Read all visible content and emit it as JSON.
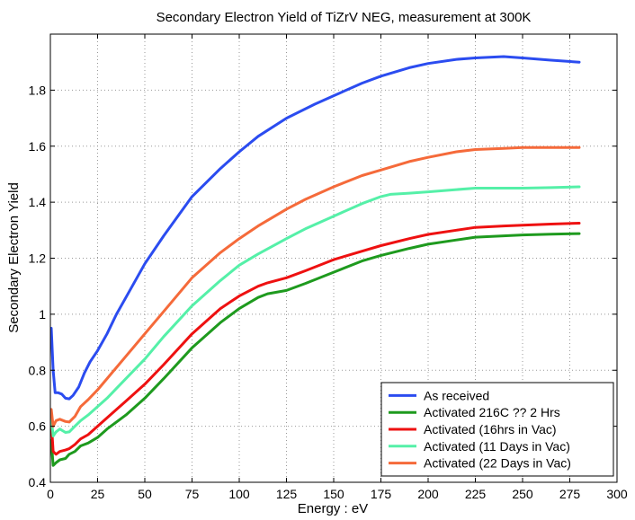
{
  "chart_data": {
    "type": "line",
    "title": "Secondary Electron Yield of TiZrV NEG, measurement at 300K",
    "xlabel": "Energy : eV",
    "ylabel": "Secondary Electron Yield",
    "xlim": [
      0,
      300
    ],
    "ylim": [
      0.4,
      2.0
    ],
    "xticks": [
      0,
      25,
      50,
      75,
      100,
      125,
      150,
      175,
      200,
      225,
      250,
      275,
      300
    ],
    "yticks": [
      0.4,
      0.6,
      0.8,
      1.0,
      1.2,
      1.4,
      1.6,
      1.8
    ],
    "ytick_labels": [
      "0.4",
      "0.6",
      "0.8",
      "1",
      "1.2",
      "1.4",
      "1.6",
      "1.8"
    ],
    "grid": true,
    "legend_position": "bottom-right",
    "series": [
      {
        "name": "As received",
        "color": "#2b4cf0",
        "points": [
          [
            0.5,
            0.95
          ],
          [
            1.5,
            0.8
          ],
          [
            2.5,
            0.72
          ],
          [
            4,
            0.72
          ],
          [
            6,
            0.715
          ],
          [
            8,
            0.7
          ],
          [
            10,
            0.698
          ],
          [
            12,
            0.71
          ],
          [
            15,
            0.74
          ],
          [
            18,
            0.79
          ],
          [
            21,
            0.83
          ],
          [
            25,
            0.87
          ],
          [
            30,
            0.93
          ],
          [
            35,
            1.0
          ],
          [
            40,
            1.06
          ],
          [
            50,
            1.18
          ],
          [
            60,
            1.28
          ],
          [
            75,
            1.42
          ],
          [
            90,
            1.52
          ],
          [
            100,
            1.58
          ],
          [
            110,
            1.635
          ],
          [
            125,
            1.7
          ],
          [
            140,
            1.75
          ],
          [
            150,
            1.78
          ],
          [
            165,
            1.825
          ],
          [
            175,
            1.85
          ],
          [
            190,
            1.88
          ],
          [
            200,
            1.895
          ],
          [
            215,
            1.91
          ],
          [
            225,
            1.915
          ],
          [
            240,
            1.92
          ],
          [
            250,
            1.915
          ],
          [
            265,
            1.907
          ],
          [
            280,
            1.9
          ]
        ]
      },
      {
        "name": "Activated 216C ?? 2 Hrs",
        "color": "#1e9a1e",
        "points": [
          [
            0.5,
            0.55
          ],
          [
            1.5,
            0.46
          ],
          [
            3,
            0.47
          ],
          [
            5,
            0.48
          ],
          [
            8,
            0.485
          ],
          [
            10,
            0.5
          ],
          [
            13,
            0.51
          ],
          [
            16,
            0.53
          ],
          [
            20,
            0.54
          ],
          [
            25,
            0.56
          ],
          [
            30,
            0.59
          ],
          [
            40,
            0.64
          ],
          [
            50,
            0.7
          ],
          [
            60,
            0.77
          ],
          [
            75,
            0.88
          ],
          [
            90,
            0.97
          ],
          [
            100,
            1.02
          ],
          [
            110,
            1.06
          ],
          [
            115,
            1.073
          ],
          [
            125,
            1.085
          ],
          [
            135,
            1.11
          ],
          [
            150,
            1.15
          ],
          [
            165,
            1.19
          ],
          [
            175,
            1.21
          ],
          [
            190,
            1.235
          ],
          [
            200,
            1.25
          ],
          [
            215,
            1.265
          ],
          [
            225,
            1.275
          ],
          [
            240,
            1.28
          ],
          [
            250,
            1.283
          ],
          [
            265,
            1.286
          ],
          [
            280,
            1.288
          ]
        ]
      },
      {
        "name": "Activated (16hrs in Vac)",
        "color": "#ee1111",
        "points": [
          [
            0.5,
            0.62
          ],
          [
            1.5,
            0.51
          ],
          [
            3,
            0.5
          ],
          [
            5,
            0.51
          ],
          [
            8,
            0.515
          ],
          [
            10,
            0.52
          ],
          [
            13,
            0.535
          ],
          [
            16,
            0.555
          ],
          [
            20,
            0.57
          ],
          [
            25,
            0.6
          ],
          [
            30,
            0.63
          ],
          [
            40,
            0.69
          ],
          [
            50,
            0.75
          ],
          [
            60,
            0.82
          ],
          [
            75,
            0.93
          ],
          [
            90,
            1.02
          ],
          [
            100,
            1.065
          ],
          [
            110,
            1.1
          ],
          [
            115,
            1.112
          ],
          [
            125,
            1.13
          ],
          [
            135,
            1.155
          ],
          [
            150,
            1.195
          ],
          [
            165,
            1.225
          ],
          [
            175,
            1.245
          ],
          [
            190,
            1.27
          ],
          [
            200,
            1.285
          ],
          [
            215,
            1.3
          ],
          [
            225,
            1.31
          ],
          [
            240,
            1.315
          ],
          [
            250,
            1.318
          ],
          [
            265,
            1.322
          ],
          [
            280,
            1.325
          ]
        ]
      },
      {
        "name": "Activated (11 Days in Vac)",
        "color": "#55f0a8",
        "points": [
          [
            0.5,
            0.63
          ],
          [
            1.5,
            0.565
          ],
          [
            3,
            0.58
          ],
          [
            5,
            0.59
          ],
          [
            8,
            0.578
          ],
          [
            10,
            0.58
          ],
          [
            13,
            0.6
          ],
          [
            16,
            0.62
          ],
          [
            20,
            0.64
          ],
          [
            25,
            0.67
          ],
          [
            30,
            0.7
          ],
          [
            40,
            0.77
          ],
          [
            50,
            0.84
          ],
          [
            60,
            0.92
          ],
          [
            75,
            1.03
          ],
          [
            90,
            1.12
          ],
          [
            100,
            1.175
          ],
          [
            110,
            1.215
          ],
          [
            125,
            1.27
          ],
          [
            135,
            1.305
          ],
          [
            150,
            1.35
          ],
          [
            165,
            1.395
          ],
          [
            175,
            1.42
          ],
          [
            180,
            1.428
          ],
          [
            190,
            1.432
          ],
          [
            200,
            1.437
          ],
          [
            215,
            1.445
          ],
          [
            225,
            1.45
          ],
          [
            240,
            1.45
          ],
          [
            250,
            1.45
          ],
          [
            265,
            1.452
          ],
          [
            280,
            1.455
          ]
        ]
      },
      {
        "name": "Activated (22 Days in Vac)",
        "color": "#f56a3a",
        "points": [
          [
            0.5,
            0.66
          ],
          [
            1.5,
            0.6
          ],
          [
            3,
            0.62
          ],
          [
            5,
            0.625
          ],
          [
            8,
            0.617
          ],
          [
            10,
            0.615
          ],
          [
            13,
            0.635
          ],
          [
            16,
            0.67
          ],
          [
            20,
            0.695
          ],
          [
            25,
            0.73
          ],
          [
            30,
            0.77
          ],
          [
            40,
            0.85
          ],
          [
            50,
            0.93
          ],
          [
            60,
            1.01
          ],
          [
            75,
            1.13
          ],
          [
            90,
            1.22
          ],
          [
            100,
            1.27
          ],
          [
            110,
            1.315
          ],
          [
            125,
            1.375
          ],
          [
            135,
            1.41
          ],
          [
            150,
            1.455
          ],
          [
            165,
            1.495
          ],
          [
            175,
            1.515
          ],
          [
            190,
            1.545
          ],
          [
            200,
            1.56
          ],
          [
            215,
            1.58
          ],
          [
            225,
            1.588
          ],
          [
            240,
            1.592
          ],
          [
            250,
            1.595
          ],
          [
            265,
            1.595
          ],
          [
            280,
            1.595
          ]
        ]
      }
    ]
  }
}
